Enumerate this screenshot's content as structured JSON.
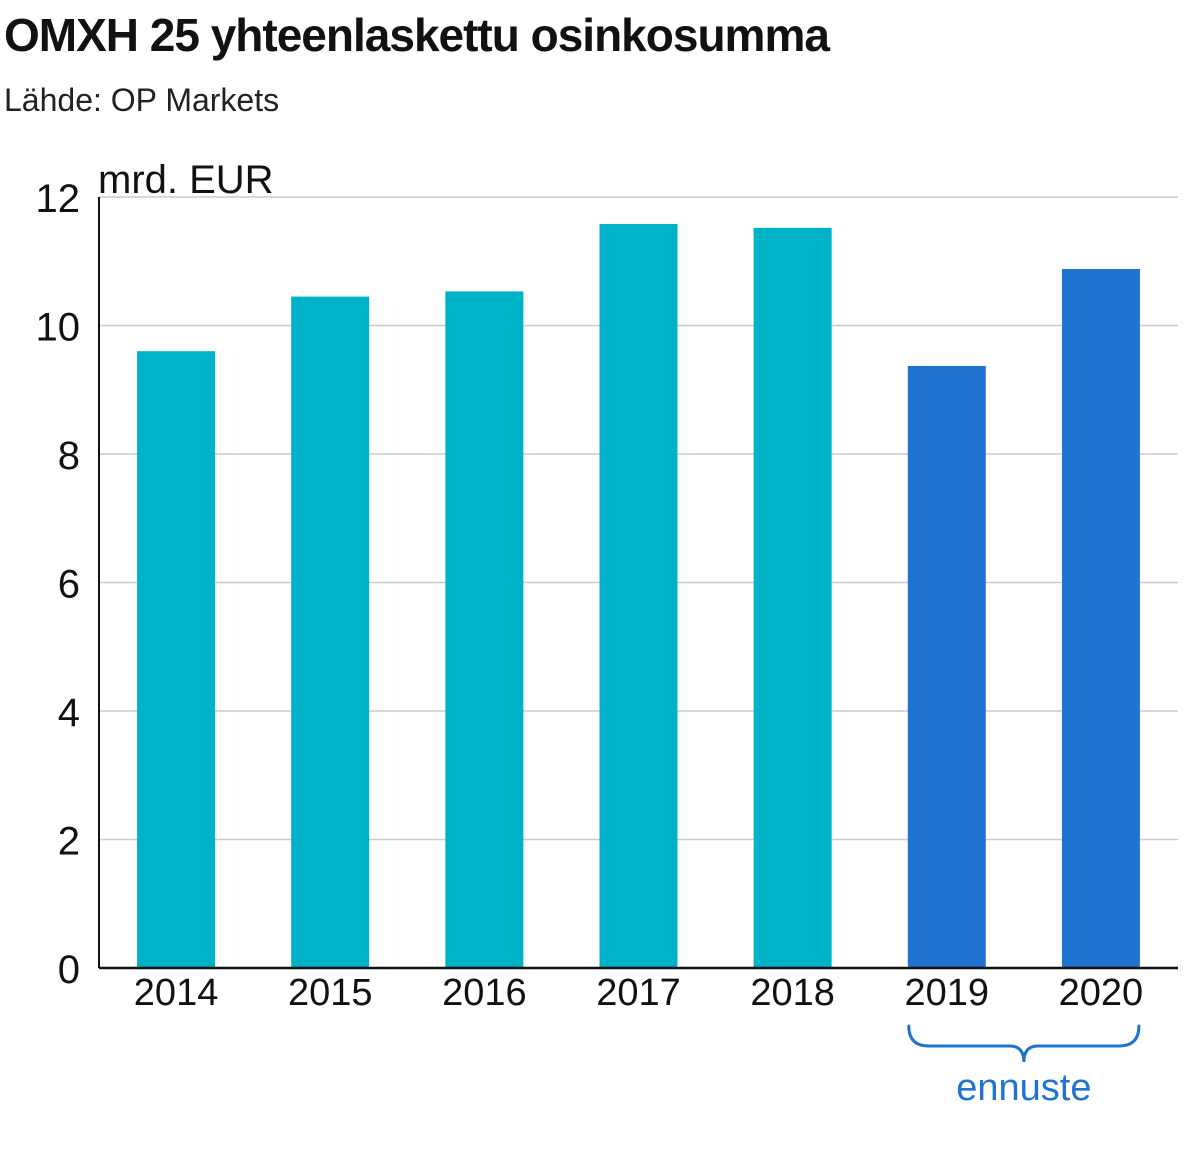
{
  "title": "OMXH 25 yhteenlaskettu osinkosumma",
  "subtitle": "Lähde: OP Markets",
  "colors": {
    "actual": "#00b2c8",
    "forecast": "#2173d1",
    "grid": "#cccccc",
    "axis": "#111111",
    "text": "#111111"
  },
  "chart_data": {
    "type": "bar",
    "categories": [
      "2014",
      "2015",
      "2016",
      "2017",
      "2018",
      "2019",
      "2020"
    ],
    "values": [
      9.6,
      10.45,
      10.53,
      11.58,
      11.52,
      9.37,
      10.88
    ],
    "forecast": [
      false,
      false,
      false,
      false,
      false,
      true,
      true
    ],
    "ylabel": "mrd. EUR",
    "ylim": [
      0,
      12
    ],
    "yticks": [
      0,
      2,
      4,
      6,
      8,
      10,
      12
    ],
    "grid": true,
    "annotation": "ennuste"
  }
}
